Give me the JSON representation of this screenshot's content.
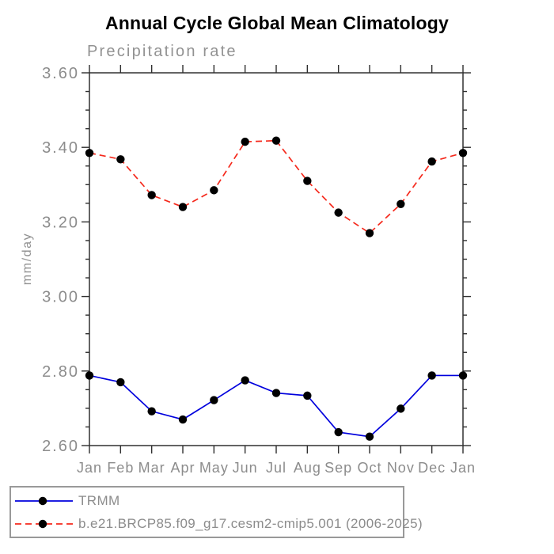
{
  "chart_data": {
    "type": "line",
    "title": "Annual Cycle Global Mean Climatology",
    "subtitle": "Precipitation rate",
    "xlabel": "",
    "ylabel": "mm/day",
    "categories": [
      "Jan",
      "Feb",
      "Mar",
      "Apr",
      "May",
      "Jun",
      "Jul",
      "Aug",
      "Sep",
      "Oct",
      "Nov",
      "Dec",
      "Jan"
    ],
    "ylim": [
      2.6,
      3.6
    ],
    "ytick_major": 0.2,
    "ytick_minor": 0.05,
    "ytick_labels": [
      "2.60",
      "2.80",
      "3.00",
      "3.20",
      "3.40",
      "3.60"
    ],
    "grid": false,
    "legend_position": "bottom-left",
    "series": [
      {
        "name": "TRMM",
        "style": "solid",
        "color": "#0000dd",
        "marker": "circle",
        "marker_color": "#000000",
        "values": [
          2.788,
          2.77,
          2.692,
          2.67,
          2.722,
          2.775,
          2.741,
          2.734,
          2.636,
          2.624,
          2.699,
          2.788,
          2.788
        ]
      },
      {
        "name": "b.e21.BRCP85.f09_g17.cesm2-cmip5.001 (2006-2025)",
        "style": "dashed",
        "color": "#f5291c",
        "marker": "circle",
        "marker_color": "#000000",
        "values": [
          3.385,
          3.368,
          3.272,
          3.24,
          3.285,
          3.415,
          3.418,
          3.31,
          3.225,
          3.17,
          3.248,
          3.362,
          3.385
        ]
      }
    ],
    "colors": {
      "axis": "#3e3e3e",
      "tick": "#2e2e2e",
      "tick_label": "#8c8c8c",
      "title_text": "#000000",
      "secondary_text": "#929292",
      "legend_border": "#999999"
    }
  }
}
